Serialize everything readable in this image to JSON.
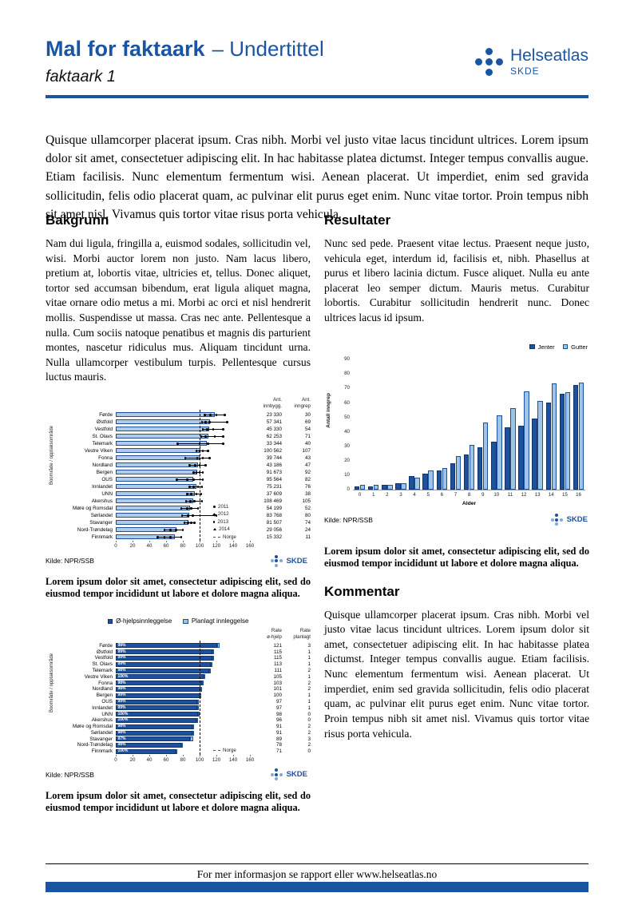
{
  "branding": {
    "helseatlas": "Helseatlas",
    "skde": "SKDE",
    "brand_color": "#1A55A4",
    "dark_bar_color": "#1D519E",
    "light_bar_color": "#9FC4E6"
  },
  "header": {
    "title": "Mal for faktaark",
    "title_suffix": "– Undertittel",
    "subtitle": "faktaark 1"
  },
  "intro": {
    "text": "Quisque ullamcorper placerat ipsum. Cras nibh. Morbi vel justo vitae lacus tincidunt ultrices. Lorem ipsum dolor sit amet, consectetuer adipiscing elit. In hac habitasse platea dictumst. Integer tempus convallis augue. Etiam facilisis. Nunc elementum fermentum wisi. Aenean placerat. Ut imperdiet, enim sed gravida sollicitudin, felis odio placerat quam, ac pulvinar elit purus eget enim. Nunc vitae tortor. Proin tempus nibh sit amet nisl. Vivamus quis tortor vitae risus porta vehicula."
  },
  "sections": {
    "bakgrunn": {
      "heading": "Bakgrunn",
      "body": "Nam dui ligula, fringilla a, euismod sodales, sollicitudin vel, wisi. Morbi auctor lorem non justo. Nam lacus libero, pretium at, lobortis vitae, ultricies et, tellus. Donec aliquet, tortor sed accumsan bibendum, erat ligula aliquet magna, vitae ornare odio metus a mi. Morbi ac orci et nisl hendrerit mollis. Suspendisse ut massa. Cras nec ante. Pellentesque a nulla. Cum sociis natoque penatibus et magnis dis parturient montes, nascetur ridiculus mus. Aliquam tincidunt urna. Nulla ullamcorper vestibulum turpis. Pellentesque cursus luctus mauris."
    },
    "resultater": {
      "heading": "Resultater",
      "body": "Nunc sed pede. Praesent vitae lectus. Praesent neque justo, vehicula eget, interdum id, facilisis et, nibh. Phasellus at purus et libero lacinia dictum. Fusce aliquet. Nulla eu ante placerat leo semper dictum. Mauris metus. Curabitur lobortis. Curabitur sollicitudin hendrerit nunc. Donec ultrices lacus id ipsum."
    },
    "kommentar": {
      "heading": "Kommentar",
      "body": "Quisque ullamcorper placerat ipsum. Cras nibh. Morbi vel justo vitae lacus tincidunt ultrices. Lorem ipsum dolor sit amet, consectetuer adipiscing elit. In hac habitasse platea dictumst. Integer tempus convallis augue. Etiam facilisis. Nunc elementum fermentum wisi. Aenean placerat. Ut imperdiet, enim sed gravida sollicitudin, felis odio placerat quam, ac pulvinar elit purus eget enim. Nunc vitae tortor. Proin tempus nibh sit amet nisl. Vivamus quis tortor vitae risus porta vehicula."
    }
  },
  "captions": {
    "chart1": "Lorem ipsum dolor sit amet, consectetur adipiscing elit, sed do eiusmod tempor incididunt ut labore et dolore magna aliqua.",
    "chart2": "Lorem ipsum dolor sit amet, consectetur adipiscing elit, sed do eiusmod tempor incididunt ut labore et dolore magna aliqua.",
    "chart3": "Lorem ipsum dolor sit amet, consectetur adipiscing elit, sed do eiusmod tempor incididunt ut labore et dolore magna aliqua."
  },
  "footer": {
    "text": "For mer informasjon se rapport eller www.helseatlas.no"
  },
  "chart_data": [
    {
      "id": "rate-by-area",
      "type": "bar",
      "orientation": "horizontal",
      "ylabel": "Boområde / opptaksområde",
      "source": "Kilde: NPR/SSB",
      "xlim": [
        0,
        160
      ],
      "xticks": [
        0,
        20,
        40,
        60,
        80,
        100,
        120,
        140,
        160
      ],
      "norge_line": 100,
      "col_headers": [
        "Ant.\ninnbygg.",
        "Ant.\ninngrep"
      ],
      "legend_years": [
        "2011",
        "2012",
        "2013",
        "2014"
      ],
      "legend_norge": "Norge",
      "rows": [
        {
          "name": "Førde",
          "value": 118,
          "year_points": [
            106,
            113,
            120,
            130
          ],
          "innbygg": "23 330",
          "inngrep": "30"
        },
        {
          "name": "Østfold",
          "value": 112,
          "year_points": [
            103,
            107,
            112,
            133
          ],
          "innbygg": "57 341",
          "inngrep": "69"
        },
        {
          "name": "Vestfold",
          "value": 111,
          "year_points": [
            104,
            109,
            116,
            128
          ],
          "innbygg": "45 330",
          "inngrep": "54"
        },
        {
          "name": "St. Olavs",
          "value": 110,
          "year_points": [
            102,
            107,
            118,
            128
          ],
          "innbygg": "62 253",
          "inngrep": "71"
        },
        {
          "name": "Telemark",
          "value": 109,
          "year_points": [
            74,
            100,
            110,
            128
          ],
          "innbygg": "33 344",
          "inngrep": "40"
        },
        {
          "name": "Vestre Viken",
          "value": 101,
          "year_points": [
            96,
            100,
            104,
            110
          ],
          "innbygg": "100 562",
          "inngrep": "107"
        },
        {
          "name": "Fonna",
          "value": 100,
          "year_points": [
            83,
            97,
            104,
            112
          ],
          "innbygg": "39 744",
          "inngrep": "43"
        },
        {
          "name": "Nordland",
          "value": 98,
          "year_points": [
            88,
            95,
            100,
            107
          ],
          "innbygg": "43 186",
          "inngrep": "47"
        },
        {
          "name": "Bergen",
          "value": 97,
          "year_points": [
            93,
            96,
            100,
            104
          ],
          "innbygg": "91 673",
          "inngrep": "92"
        },
        {
          "name": "OUS",
          "value": 92,
          "year_points": [
            73,
            85,
            93,
            104
          ],
          "innbygg": "95 564",
          "inngrep": "82"
        },
        {
          "name": "Innlandet",
          "value": 96,
          "year_points": [
            88,
            93,
            98,
            103
          ],
          "innbygg": "75 231",
          "inngrep": "76"
        },
        {
          "name": "UNN",
          "value": 94,
          "year_points": [
            85,
            90,
            96,
            102
          ],
          "innbygg": "37 609",
          "inngrep": "38"
        },
        {
          "name": "Akershus",
          "value": 92,
          "year_points": [
            84,
            89,
            94,
            103
          ],
          "innbygg": "108 469",
          "inngrep": "105"
        },
        {
          "name": "Møre og Romsdal",
          "value": 89,
          "year_points": [
            78,
            85,
            90,
            98
          ],
          "innbygg": "54 199",
          "inngrep": "52"
        },
        {
          "name": "Sørlandet",
          "value": 88,
          "year_points": [
            79,
            86,
            92,
            120
          ],
          "innbygg": "83 768",
          "inngrep": "80"
        },
        {
          "name": "Stavanger",
          "value": 87,
          "year_points": [
            82,
            86,
            90,
            94
          ],
          "innbygg": "81 507",
          "inngrep": "74"
        },
        {
          "name": "Nord-Trøndelag",
          "value": 72,
          "year_points": [
            58,
            65,
            72,
            80
          ],
          "innbygg": "29 056",
          "inngrep": "24"
        },
        {
          "name": "Finnmark",
          "value": 70,
          "year_points": [
            50,
            58,
            65,
            78
          ],
          "innbygg": "15 332",
          "inngrep": "11"
        }
      ]
    },
    {
      "id": "inngrep-by-age-sex",
      "type": "bar",
      "orientation": "vertical",
      "xlabel": "Alder",
      "ylabel": "Antall inngrep",
      "source": "Kilde: NPR/SSB",
      "ylim": [
        0,
        90
      ],
      "yticks": [
        0,
        10,
        20,
        30,
        40,
        50,
        60,
        70,
        80,
        90
      ],
      "categories": [
        "0",
        "1",
        "2",
        "3",
        "4",
        "5",
        "6",
        "7",
        "8",
        "9",
        "10",
        "11",
        "12",
        "13",
        "14",
        "15",
        "16"
      ],
      "series": [
        {
          "name": "Jenter",
          "color": "#1D519E",
          "values": [
            2,
            2,
            3,
            4,
            9,
            11,
            13,
            18,
            24,
            29,
            33,
            43,
            44,
            49,
            60,
            66,
            72
          ]
        },
        {
          "name": "Gutter",
          "color": "#9FC4E6",
          "values": [
            3,
            3,
            3,
            4,
            8,
            13,
            15,
            23,
            31,
            46,
            51,
            56,
            68,
            61,
            73,
            67,
            74
          ]
        }
      ]
    },
    {
      "id": "ohjelp-vs-planlagt",
      "type": "bar",
      "orientation": "horizontal-stacked",
      "ylabel": "Boområde / opptaksområde",
      "source": "Kilde: NPR/SSB",
      "xlim": [
        0,
        160
      ],
      "xticks": [
        0,
        20,
        40,
        60,
        80,
        100,
        120,
        140,
        160
      ],
      "norge_line": 100,
      "legend": [
        "Ø-hjelpsinnleggelse",
        "Planlagt innleggelse"
      ],
      "legend_norge": "Norge",
      "col_headers": [
        "Rate\nø-hjelp",
        "Rate\nplanlagt"
      ],
      "rows": [
        {
          "name": "Førde",
          "pct": "98%",
          "rate_ohjelp": 121,
          "rate_planlagt": 3
        },
        {
          "name": "Østfold",
          "pct": "99%",
          "rate_ohjelp": 115,
          "rate_planlagt": 1
        },
        {
          "name": "Vestfold",
          "pct": "99%",
          "rate_ohjelp": 115,
          "rate_planlagt": 1
        },
        {
          "name": "St. Olavs",
          "pct": "99%",
          "rate_ohjelp": 113,
          "rate_planlagt": 1
        },
        {
          "name": "Telemark",
          "pct": "98%",
          "rate_ohjelp": 111,
          "rate_planlagt": 2
        },
        {
          "name": "Vestre Viken",
          "pct": "100%",
          "rate_ohjelp": 105,
          "rate_planlagt": 1
        },
        {
          "name": "Fonna",
          "pct": "98%",
          "rate_ohjelp": 103,
          "rate_planlagt": 2
        },
        {
          "name": "Nordland",
          "pct": "98%",
          "rate_ohjelp": 101,
          "rate_planlagt": 2
        },
        {
          "name": "Bergen",
          "pct": "99%",
          "rate_ohjelp": 100,
          "rate_planlagt": 1
        },
        {
          "name": "OUS",
          "pct": "99%",
          "rate_ohjelp": 97,
          "rate_planlagt": 1
        },
        {
          "name": "Innlandet",
          "pct": "99%",
          "rate_ohjelp": 97,
          "rate_planlagt": 1
        },
        {
          "name": "UNN",
          "pct": "100%",
          "rate_ohjelp": 98,
          "rate_planlagt": 0
        },
        {
          "name": "Akershus",
          "pct": "100%",
          "rate_ohjelp": 96,
          "rate_planlagt": 0
        },
        {
          "name": "Møre og Romsdal",
          "pct": "98%",
          "rate_ohjelp": 91,
          "rate_planlagt": 2
        },
        {
          "name": "Sørlandet",
          "pct": "98%",
          "rate_ohjelp": 91,
          "rate_planlagt": 2
        },
        {
          "name": "Stavanger",
          "pct": "97%",
          "rate_ohjelp": 89,
          "rate_planlagt": 3
        },
        {
          "name": "Nord-Trøndelag",
          "pct": "98%",
          "rate_ohjelp": 78,
          "rate_planlagt": 2
        },
        {
          "name": "Finnmark",
          "pct": "100%",
          "rate_ohjelp": 71,
          "rate_planlagt": 0
        }
      ]
    }
  ]
}
